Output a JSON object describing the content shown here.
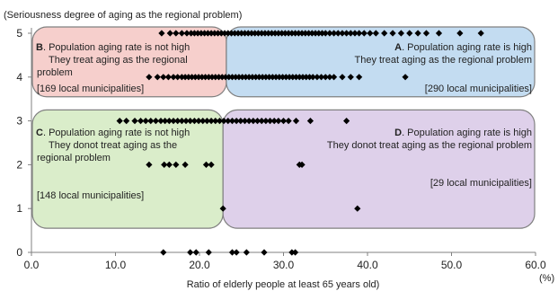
{
  "chart_data": {
    "type": "scatter",
    "title": "(Seriousness degree of aging as the regional problem)",
    "xlabel": "Ratio of elderly people at least 65 years old)",
    "xunit": "(%)",
    "xlim": [
      0,
      60
    ],
    "ylim": [
      0,
      5
    ],
    "x_ticks": [
      "0.0",
      "10.0",
      "20.0",
      "30.0",
      "40.0",
      "50.0",
      "60.0"
    ],
    "y_ticks": [
      "0",
      "1",
      "2",
      "3",
      "4",
      "5"
    ],
    "marker_color": "#000000",
    "regions": [
      {
        "letter": "B",
        "heading": ". Population aging rate is not high",
        "lines": [
          "They treat aging as the regional",
          "problem"
        ],
        "count": "[169 local municipalities]",
        "fill": "#f4c7c3",
        "x_range": [
          0,
          23.2
        ],
        "y_range": [
          3.55,
          5.3
        ]
      },
      {
        "letter": "A",
        "heading": ". Population aging rate is high",
        "lines": [
          "They treat aging as the regional problem"
        ],
        "count": "[290 local municipalities]",
        "fill": "#b9d6ee",
        "x_range": [
          23.2,
          60
        ],
        "y_range": [
          3.55,
          5.3
        ]
      },
      {
        "letter": "C",
        "heading": ". Population aging rate is not high",
        "lines": [
          "They donot treat aging as the",
          "regional problem"
        ],
        "count": "[148 local municipalities]",
        "fill": "#d3eac1",
        "x_range": [
          0,
          22.8
        ],
        "y_range": [
          0.55,
          3.25
        ]
      },
      {
        "letter": "D",
        "heading": ". Population aging rate is high",
        "lines": [
          "They donot treat aging as the regional problem"
        ],
        "count": "[29 local municipalities]",
        "fill": "#d8c8e6",
        "x_range": [
          22.8,
          60
        ],
        "y_range": [
          0.55,
          3.25
        ]
      }
    ],
    "series": [
      {
        "points": [
          [
            15.5,
            5
          ],
          [
            16.5,
            5
          ],
          [
            17.2,
            5
          ],
          [
            17.9,
            5
          ],
          [
            18.5,
            5
          ],
          [
            19.0,
            5
          ],
          [
            19.4,
            5
          ],
          [
            19.8,
            5
          ],
          [
            20.2,
            5
          ],
          [
            20.6,
            5
          ],
          [
            21.0,
            5
          ],
          [
            21.4,
            5
          ],
          [
            21.8,
            5
          ],
          [
            22.2,
            5
          ],
          [
            22.6,
            5
          ],
          [
            23.0,
            5
          ],
          [
            23.4,
            5
          ],
          [
            23.8,
            5
          ],
          [
            24.2,
            5
          ],
          [
            24.6,
            5
          ],
          [
            25.0,
            5
          ],
          [
            25.4,
            5
          ],
          [
            25.8,
            5
          ],
          [
            26.2,
            5
          ],
          [
            26.6,
            5
          ],
          [
            27.0,
            5
          ],
          [
            27.4,
            5
          ],
          [
            27.8,
            5
          ],
          [
            28.2,
            5
          ],
          [
            28.6,
            5
          ],
          [
            29.0,
            5
          ],
          [
            29.4,
            5
          ],
          [
            29.8,
            5
          ],
          [
            30.2,
            5
          ],
          [
            30.6,
            5
          ],
          [
            31.0,
            5
          ],
          [
            31.4,
            5
          ],
          [
            31.8,
            5
          ],
          [
            32.2,
            5
          ],
          [
            32.6,
            5
          ],
          [
            33.0,
            5
          ],
          [
            33.4,
            5
          ],
          [
            33.8,
            5
          ],
          [
            34.2,
            5
          ],
          [
            34.6,
            5
          ],
          [
            35.0,
            5
          ],
          [
            35.5,
            5
          ],
          [
            36.0,
            5
          ],
          [
            36.5,
            5
          ],
          [
            37.0,
            5
          ],
          [
            37.5,
            5
          ],
          [
            38.0,
            5
          ],
          [
            38.5,
            5
          ],
          [
            39.0,
            5
          ],
          [
            39.6,
            5
          ],
          [
            40.3,
            5
          ],
          [
            41.0,
            5
          ],
          [
            42.0,
            5
          ],
          [
            43.0,
            5
          ],
          [
            44.0,
            5
          ],
          [
            45.0,
            5
          ],
          [
            46.0,
            5
          ],
          [
            47.0,
            5
          ],
          [
            48.5,
            5
          ],
          [
            51.0,
            5
          ],
          [
            53.5,
            5
          ],
          [
            14.0,
            4
          ],
          [
            15.0,
            4
          ],
          [
            15.7,
            4
          ],
          [
            16.3,
            4
          ],
          [
            16.9,
            4
          ],
          [
            17.4,
            4
          ],
          [
            17.9,
            4
          ],
          [
            18.3,
            4
          ],
          [
            18.7,
            4
          ],
          [
            19.1,
            4
          ],
          [
            19.5,
            4
          ],
          [
            19.9,
            4
          ],
          [
            20.3,
            4
          ],
          [
            20.7,
            4
          ],
          [
            21.1,
            4
          ],
          [
            21.5,
            4
          ],
          [
            21.9,
            4
          ],
          [
            22.3,
            4
          ],
          [
            22.7,
            4
          ],
          [
            23.1,
            4
          ],
          [
            23.5,
            4
          ],
          [
            23.9,
            4
          ],
          [
            24.3,
            4
          ],
          [
            24.7,
            4
          ],
          [
            25.1,
            4
          ],
          [
            25.5,
            4
          ],
          [
            25.9,
            4
          ],
          [
            26.3,
            4
          ],
          [
            26.7,
            4
          ],
          [
            27.1,
            4
          ],
          [
            27.5,
            4
          ],
          [
            27.9,
            4
          ],
          [
            28.3,
            4
          ],
          [
            28.7,
            4
          ],
          [
            29.1,
            4
          ],
          [
            29.5,
            4
          ],
          [
            29.9,
            4
          ],
          [
            30.3,
            4
          ],
          [
            30.7,
            4
          ],
          [
            31.1,
            4
          ],
          [
            31.5,
            4
          ],
          [
            31.9,
            4
          ],
          [
            32.3,
            4
          ],
          [
            32.7,
            4
          ],
          [
            33.1,
            4
          ],
          [
            33.5,
            4
          ],
          [
            34.0,
            4
          ],
          [
            34.5,
            4
          ],
          [
            35.0,
            4
          ],
          [
            35.5,
            4
          ],
          [
            36.0,
            4
          ],
          [
            37.0,
            4
          ],
          [
            38.0,
            4
          ],
          [
            39.0,
            4
          ],
          [
            44.5,
            4
          ],
          [
            10.5,
            3
          ],
          [
            11.3,
            3
          ],
          [
            12.3,
            3
          ],
          [
            13.0,
            3
          ],
          [
            13.6,
            3
          ],
          [
            14.2,
            3
          ],
          [
            14.8,
            3
          ],
          [
            15.4,
            3
          ],
          [
            15.9,
            3
          ],
          [
            16.4,
            3
          ],
          [
            16.9,
            3
          ],
          [
            17.4,
            3
          ],
          [
            17.9,
            3
          ],
          [
            18.4,
            3
          ],
          [
            18.9,
            3
          ],
          [
            19.4,
            3
          ],
          [
            19.9,
            3
          ],
          [
            20.4,
            3
          ],
          [
            20.9,
            3
          ],
          [
            21.4,
            3
          ],
          [
            21.9,
            3
          ],
          [
            22.4,
            3
          ],
          [
            22.9,
            3
          ],
          [
            23.4,
            3
          ],
          [
            23.9,
            3
          ],
          [
            24.4,
            3
          ],
          [
            24.9,
            3
          ],
          [
            25.4,
            3
          ],
          [
            25.9,
            3
          ],
          [
            26.4,
            3
          ],
          [
            26.9,
            3
          ],
          [
            27.4,
            3
          ],
          [
            27.9,
            3
          ],
          [
            28.4,
            3
          ],
          [
            28.9,
            3
          ],
          [
            29.4,
            3
          ],
          [
            30.0,
            3
          ],
          [
            30.6,
            3
          ],
          [
            31.5,
            3
          ],
          [
            33.2,
            3
          ],
          [
            37.5,
            3
          ],
          [
            14.0,
            2
          ],
          [
            15.8,
            2
          ],
          [
            16.4,
            2
          ],
          [
            17.2,
            2
          ],
          [
            18.3,
            2
          ],
          [
            20.8,
            2
          ],
          [
            21.4,
            2
          ],
          [
            31.9,
            2
          ],
          [
            32.2,
            2
          ],
          [
            22.8,
            1
          ],
          [
            38.8,
            1
          ],
          [
            15.7,
            0
          ],
          [
            18.9,
            0
          ],
          [
            19.6,
            0
          ],
          [
            21.1,
            0
          ],
          [
            23.9,
            0
          ],
          [
            24.4,
            0
          ],
          [
            25.6,
            0
          ],
          [
            27.7,
            0
          ],
          [
            31.0,
            0
          ],
          [
            31.4,
            0
          ]
        ]
      }
    ]
  }
}
